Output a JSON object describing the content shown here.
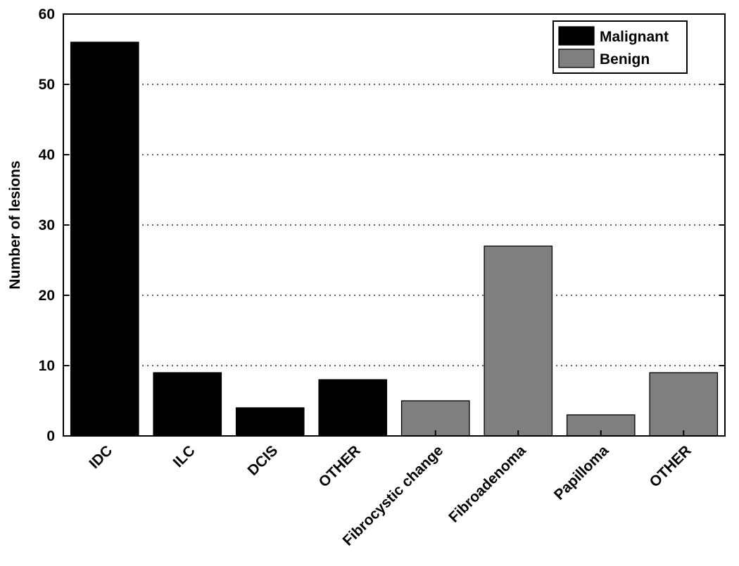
{
  "chart_data": {
    "type": "bar",
    "categories": [
      "IDC",
      "ILC",
      "DCIS",
      "OTHER",
      "Fibrocystic change",
      "Fibroadenoma",
      "Papilloma",
      "OTHER"
    ],
    "series": [
      {
        "name": "Malignant",
        "values": [
          56,
          9,
          4,
          8,
          null,
          null,
          null,
          null
        ]
      },
      {
        "name": "Benign",
        "values": [
          null,
          null,
          null,
          null,
          5,
          27,
          3,
          9
        ]
      }
    ],
    "xlabel": "",
    "ylabel": "Number of lesions",
    "ylim": [
      0,
      60
    ],
    "yticks": [
      0,
      10,
      20,
      30,
      40,
      50,
      60
    ],
    "grid": "horizontal dotted",
    "legend_position": "top-right",
    "colors": {
      "Malignant": "#000000",
      "Benign": "#7f7f7f"
    }
  }
}
